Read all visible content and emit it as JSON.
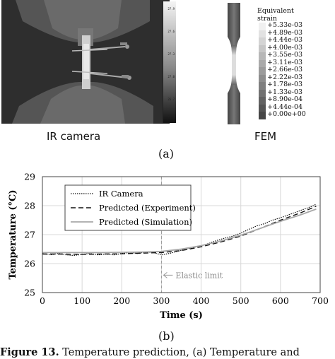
{
  "panel_a": {
    "ir_label": "IR camera",
    "fem_label": "FEM",
    "sub_label": "(a)",
    "legend": {
      "title_line1": "Equivalent",
      "title_line2": "strain",
      "entries": [
        "+5.33e-03",
        "+4.89e-03",
        "+4.44e-03",
        "+4.00e-03",
        "+3.55e-03",
        "+3.11e-03",
        "+2.66e-03",
        "+2.22e-03",
        "+1.78e-03",
        "+1.33e-03",
        "+8.90e-04",
        "+4.44e-04",
        "+0.00e+00"
      ]
    }
  },
  "panel_b": {
    "sub_label": "(b)"
  },
  "chart_data": {
    "type": "line",
    "xlabel": "Time (s)",
    "ylabel": "Temperature (°C)",
    "xlim": [
      0,
      700
    ],
    "ylim": [
      25,
      29
    ],
    "xticks": [
      0,
      100,
      200,
      300,
      400,
      500,
      600,
      700
    ],
    "yticks": [
      25,
      26,
      27,
      28,
      29
    ],
    "grid": true,
    "legend_position": "top-left",
    "annotation": {
      "text": "Elastic limit",
      "x": 300
    },
    "series": [
      {
        "name": "IR Camera",
        "style": "dotted",
        "x": [
          0,
          20,
          40,
          60,
          80,
          100,
          120,
          140,
          160,
          180,
          200,
          220,
          240,
          260,
          280,
          300,
          320,
          340,
          360,
          380,
          400,
          420,
          440,
          460,
          480,
          500,
          520,
          540,
          560,
          580,
          600,
          620,
          640,
          660,
          680,
          690
        ],
        "y": [
          26.35,
          26.3,
          26.35,
          26.3,
          26.28,
          26.32,
          26.35,
          26.3,
          26.33,
          26.3,
          26.35,
          26.38,
          26.35,
          26.4,
          26.38,
          26.3,
          26.35,
          26.42,
          26.5,
          26.55,
          26.62,
          26.7,
          26.8,
          26.88,
          26.95,
          27.05,
          27.18,
          27.3,
          27.38,
          27.5,
          27.58,
          27.68,
          27.78,
          27.88,
          27.98,
          28.05
        ]
      },
      {
        "name": "Predicted (Experiment)",
        "style": "dashed",
        "x": [
          0,
          50,
          100,
          150,
          200,
          250,
          300,
          350,
          400,
          450,
          500,
          550,
          600,
          650,
          690
        ],
        "y": [
          26.33,
          26.33,
          26.32,
          26.33,
          26.34,
          26.36,
          26.38,
          26.45,
          26.58,
          26.75,
          26.95,
          27.22,
          27.5,
          27.75,
          27.98
        ]
      },
      {
        "name": "Predicted (Simulation)",
        "style": "solid-gray",
        "x": [
          0,
          50,
          100,
          150,
          200,
          250,
          300,
          350,
          400,
          450,
          500,
          550,
          600,
          650,
          690
        ],
        "y": [
          26.38,
          26.38,
          26.38,
          26.38,
          26.39,
          26.4,
          26.42,
          26.5,
          26.62,
          26.78,
          26.98,
          27.22,
          27.46,
          27.68,
          27.88
        ]
      }
    ]
  },
  "caption": {
    "lead": "Figure 13.",
    "text": " Temperature prediction, (a) Temperature and"
  }
}
